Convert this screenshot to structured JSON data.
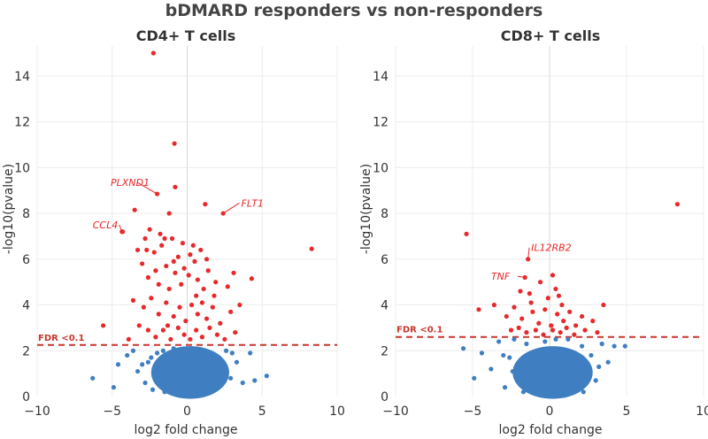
{
  "title": "bDMARD responders vs non-responders",
  "colors": {
    "significant": "#e8282b",
    "not_significant": "#3f7fc1",
    "threshold_line": "#c8372d",
    "gene_label": "#e8282b"
  },
  "chart_data": [
    {
      "type": "scatter",
      "title": "CD4+ T cells",
      "xlabel": "log2 fold change",
      "ylabel": "-log10(pvalue)",
      "xlim": [
        -10,
        10
      ],
      "ylim": [
        0,
        15
      ],
      "xticks": [
        "−10",
        "−5",
        "0",
        "5",
        "10"
      ],
      "xtick_values": [
        -10,
        -5,
        0,
        5,
        10
      ],
      "yticks": [
        "0",
        "2",
        "4",
        "6",
        "8",
        "10",
        "12",
        "14"
      ],
      "ytick_values": [
        0,
        2,
        4,
        6,
        8,
        10,
        12,
        14
      ],
      "grid": true,
      "fdr_threshold": {
        "label": "FDR <0.1",
        "y": 2.25
      },
      "annotations": [
        {
          "text": "PLXND1",
          "x": -2.0,
          "y": 8.85,
          "tx": -5.1,
          "ty": 9.2
        },
        {
          "text": "CCL4",
          "x": -4.35,
          "y": 7.2,
          "tx": -6.3,
          "ty": 7.35
        },
        {
          "text": "FLT1",
          "x": 2.4,
          "y": 8.0,
          "tx": 3.6,
          "ty": 8.3
        }
      ],
      "series": [
        {
          "significance": "not significant",
          "points": [
            [
              -6.3,
              0.8
            ],
            [
              -4.9,
              0.4
            ],
            [
              -4.6,
              1.4
            ],
            [
              -4.0,
              1.8
            ],
            [
              -3.3,
              1.1
            ],
            [
              -3.6,
              2.0
            ],
            [
              -2.8,
              0.6
            ],
            [
              -2.6,
              1.5
            ],
            [
              -2.3,
              0.3
            ],
            [
              -2.0,
              1.9
            ],
            [
              -1.8,
              1.0
            ],
            [
              -1.5,
              0.2
            ],
            [
              -1.3,
              1.6
            ],
            [
              -1.1,
              0.7
            ],
            [
              -0.9,
              2.1
            ],
            [
              -0.7,
              1.2
            ],
            [
              -0.5,
              0.1
            ],
            [
              -0.3,
              1.8
            ],
            [
              -0.1,
              0.6
            ],
            [
              0.1,
              1.4
            ],
            [
              0.3,
              0.3
            ],
            [
              0.5,
              1.9
            ],
            [
              0.7,
              0.9
            ],
            [
              0.9,
              2.0
            ],
            [
              1.1,
              0.5
            ],
            [
              1.4,
              1.3
            ],
            [
              1.7,
              1.7
            ],
            [
              2.0,
              0.4
            ],
            [
              2.3,
              1.2
            ],
            [
              2.6,
              2.0
            ],
            [
              2.9,
              0.8
            ],
            [
              3.3,
              1.5
            ],
            [
              3.7,
              0.6
            ],
            [
              4.2,
              1.9
            ],
            [
              4.5,
              0.7
            ],
            [
              5.3,
              0.9
            ],
            [
              -2.2,
              0.9
            ],
            [
              -1.6,
              2.0
            ],
            [
              -0.8,
              0.4
            ],
            [
              0.2,
              2.1
            ],
            [
              0.8,
              1.6
            ],
            [
              1.5,
              0.2
            ],
            [
              -1.0,
              1.5
            ],
            [
              0.4,
              0.8
            ],
            [
              1.2,
              1.8
            ],
            [
              -0.4,
              2.0
            ],
            [
              -2.4,
              1.7
            ],
            [
              2.1,
              1.6
            ],
            [
              -3.0,
              1.4
            ],
            [
              3.0,
              1.9
            ]
          ]
        },
        {
          "significance": "significant",
          "points": [
            [
              -2.25,
              15.0
            ],
            [
              -0.85,
              11.05
            ],
            [
              -0.8,
              9.15
            ],
            [
              -2.0,
              8.85
            ],
            [
              -3.5,
              8.15
            ],
            [
              -1.2,
              8.0
            ],
            [
              1.2,
              8.4
            ],
            [
              2.4,
              8.0
            ],
            [
              -4.35,
              7.2
            ],
            [
              -2.5,
              7.3
            ],
            [
              -4.3,
              7.2
            ],
            [
              8.3,
              6.45
            ],
            [
              -3.3,
              6.4
            ],
            [
              4.3,
              5.15
            ],
            [
              -5.6,
              3.1
            ],
            [
              -3.9,
              2.5
            ],
            [
              -3.0,
              5.8
            ],
            [
              -2.8,
              6.9
            ],
            [
              -2.2,
              6.3
            ],
            [
              -1.7,
              6.6
            ],
            [
              -1.4,
              5.7
            ],
            [
              -1.0,
              6.9
            ],
            [
              -0.6,
              6.1
            ],
            [
              -0.3,
              6.7
            ],
            [
              0.2,
              6.2
            ],
            [
              0.5,
              5.9
            ],
            [
              0.9,
              6.4
            ],
            [
              -2.6,
              5.2
            ],
            [
              -1.9,
              4.9
            ],
            [
              -1.2,
              4.7
            ],
            [
              -0.8,
              5.4
            ],
            [
              -0.4,
              4.9
            ],
            [
              0.1,
              5.3
            ],
            [
              0.7,
              5.1
            ],
            [
              1.1,
              4.7
            ],
            [
              1.4,
              5.5
            ],
            [
              1.9,
              5.0
            ],
            [
              2.7,
              4.8
            ],
            [
              3.1,
              5.4
            ],
            [
              -3.6,
              4.2
            ],
            [
              -2.9,
              3.9
            ],
            [
              -2.4,
              4.3
            ],
            [
              -1.9,
              3.6
            ],
            [
              -1.4,
              4.1
            ],
            [
              -0.9,
              3.5
            ],
            [
              -0.5,
              3.9
            ],
            [
              -0.1,
              3.3
            ],
            [
              0.3,
              4.0
            ],
            [
              0.7,
              3.6
            ],
            [
              1.0,
              4.1
            ],
            [
              1.3,
              3.4
            ],
            [
              1.7,
              3.9
            ],
            [
              2.2,
              3.2
            ],
            [
              2.9,
              3.7
            ],
            [
              3.5,
              4.0
            ],
            [
              -3.2,
              3.1
            ],
            [
              -2.6,
              2.9
            ],
            [
              -2.1,
              2.6
            ],
            [
              -1.6,
              2.9
            ],
            [
              -1.1,
              2.5
            ],
            [
              -0.6,
              3.0
            ],
            [
              -0.2,
              2.7
            ],
            [
              0.2,
              2.5
            ],
            [
              0.6,
              2.9
            ],
            [
              1.0,
              2.6
            ],
            [
              1.5,
              3.0
            ],
            [
              2.0,
              2.7
            ],
            [
              2.5,
              2.5
            ],
            [
              3.2,
              2.8
            ],
            [
              -2.7,
              6.4
            ],
            [
              -2.1,
              5.5
            ],
            [
              -1.5,
              6.9
            ],
            [
              -0.9,
              5.9
            ],
            [
              0.4,
              6.6
            ],
            [
              1.3,
              6.0
            ],
            [
              -1.8,
              7.1
            ],
            [
              -0.2,
              5.6
            ],
            [
              0.6,
              4.4
            ],
            [
              -1.3,
              3.1
            ],
            [
              1.8,
              4.4
            ]
          ]
        }
      ]
    },
    {
      "type": "scatter",
      "title": "CD8+ T cells",
      "xlabel": "log2 fold change",
      "ylabel": "-log10(pvalue)",
      "xlim": [
        -10,
        10
      ],
      "ylim": [
        0,
        15
      ],
      "xticks": [
        "−10",
        "−5",
        "0",
        "5",
        "10"
      ],
      "xtick_values": [
        -10,
        -5,
        0,
        5,
        10
      ],
      "yticks": [
        "0",
        "2",
        "4",
        "6",
        "8",
        "10",
        "12",
        "14"
      ],
      "ytick_values": [
        0,
        2,
        4,
        6,
        8,
        10,
        12,
        14
      ],
      "grid": true,
      "fdr_threshold": {
        "label": "FDR <0.1",
        "y": 2.6
      },
      "annotations": [
        {
          "text": "IL12RB2",
          "x": -1.4,
          "y": 6.0,
          "tx": -1.2,
          "ty": 6.35
        },
        {
          "text": "TNF",
          "x": -1.6,
          "y": 5.2,
          "tx": -3.8,
          "ty": 5.1
        }
      ],
      "series": [
        {
          "significance": "not significant",
          "points": [
            [
              -5.6,
              2.1
            ],
            [
              -4.9,
              0.8
            ],
            [
              -4.4,
              1.9
            ],
            [
              -3.8,
              1.2
            ],
            [
              -3.3,
              2.4
            ],
            [
              -2.9,
              0.4
            ],
            [
              -2.6,
              1.7
            ],
            [
              -2.3,
              2.5
            ],
            [
              -2.0,
              0.9
            ],
            [
              -1.8,
              1.5
            ],
            [
              -1.5,
              2.3
            ],
            [
              -1.2,
              0.3
            ],
            [
              -0.9,
              1.8
            ],
            [
              -0.6,
              0.7
            ],
            [
              -0.3,
              2.4
            ],
            [
              0.0,
              1.2
            ],
            [
              0.3,
              0.2
            ],
            [
              0.6,
              1.9
            ],
            [
              0.9,
              0.8
            ],
            [
              1.2,
              2.5
            ],
            [
              1.5,
              1.4
            ],
            [
              1.8,
              0.5
            ],
            [
              2.1,
              2.2
            ],
            [
              2.4,
              1.1
            ],
            [
              2.7,
              1.8
            ],
            [
              3.0,
              0.7
            ],
            [
              3.4,
              2.3
            ],
            [
              3.8,
              1.5
            ],
            [
              4.2,
              2.2
            ],
            [
              4.9,
              2.2
            ],
            [
              -1.1,
              1.1
            ],
            [
              0.4,
              2.5
            ],
            [
              -0.2,
              1.6
            ],
            [
              1.0,
              1.5
            ],
            [
              -2.4,
              1.1
            ],
            [
              2.2,
              0.2
            ],
            [
              -1.7,
              0.2
            ],
            [
              0.7,
              0.6
            ],
            [
              -3.0,
              1.8
            ],
            [
              3.2,
              1.3
            ]
          ]
        },
        {
          "significance": "significant",
          "points": [
            [
              8.3,
              8.4
            ],
            [
              -5.4,
              7.1
            ],
            [
              -1.4,
              6.0
            ],
            [
              -1.6,
              5.2
            ],
            [
              0.2,
              5.3
            ],
            [
              -0.6,
              5.0
            ],
            [
              0.4,
              4.7
            ],
            [
              -1.9,
              4.6
            ],
            [
              -1.3,
              4.5
            ],
            [
              0.6,
              4.4
            ],
            [
              -3.6,
              4.0
            ],
            [
              3.5,
              4.0
            ],
            [
              -4.6,
              3.8
            ],
            [
              -2.8,
              3.5
            ],
            [
              -2.3,
              3.9
            ],
            [
              -1.8,
              3.4
            ],
            [
              -1.1,
              3.7
            ],
            [
              -0.7,
              3.2
            ],
            [
              -0.3,
              3.8
            ],
            [
              0.1,
              3.1
            ],
            [
              0.5,
              3.6
            ],
            [
              0.9,
              3.3
            ],
            [
              1.3,
              3.7
            ],
            [
              1.7,
              3.1
            ],
            [
              2.1,
              3.5
            ],
            [
              2.8,
              3.3
            ],
            [
              -2.5,
              2.9
            ],
            [
              -2.0,
              3.0
            ],
            [
              -1.5,
              2.8
            ],
            [
              -0.9,
              2.9
            ],
            [
              -0.4,
              2.7
            ],
            [
              0.2,
              2.9
            ],
            [
              0.7,
              2.8
            ],
            [
              1.1,
              3.0
            ],
            [
              1.6,
              2.7
            ],
            [
              2.3,
              2.9
            ],
            [
              3.1,
              2.8
            ],
            [
              -1.2,
              4.1
            ],
            [
              0.8,
              4.0
            ],
            [
              -0.1,
              4.3
            ]
          ]
        }
      ]
    }
  ]
}
